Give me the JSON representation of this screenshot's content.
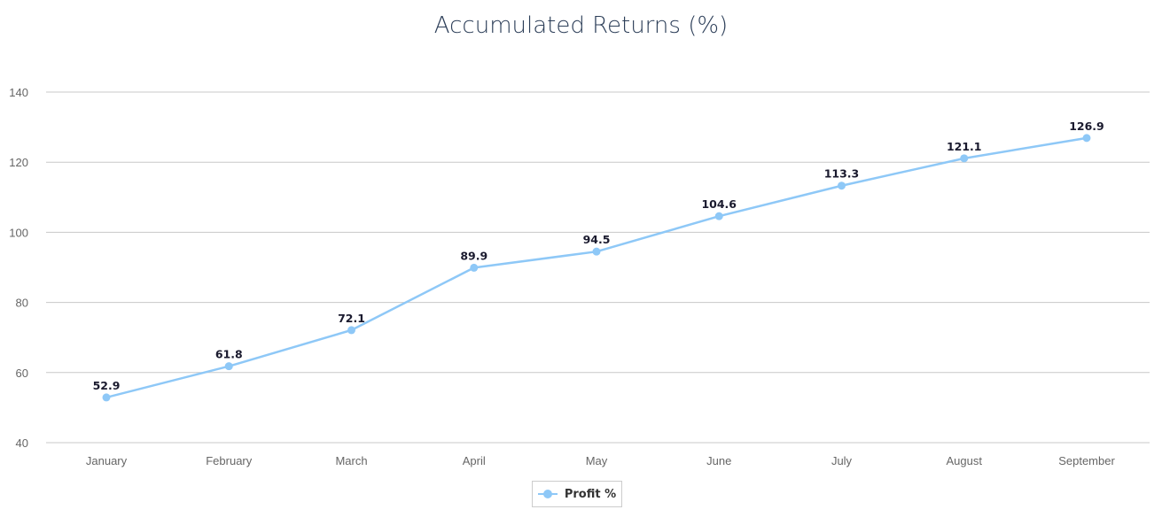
{
  "chart_data": {
    "type": "line",
    "title": "Accumulated Returns (%)",
    "categories": [
      "January",
      "February",
      "March",
      "April",
      "May",
      "June",
      "July",
      "August",
      "September"
    ],
    "series": [
      {
        "name": "Profit %",
        "values": [
          52.9,
          61.8,
          72.1,
          89.9,
          94.5,
          104.6,
          113.3,
          121.1,
          126.9
        ]
      }
    ],
    "y_ticks": [
      40,
      60,
      80,
      100,
      120,
      140
    ],
    "ylim": [
      40,
      140
    ],
    "grid": true,
    "legend_position": "bottom-center",
    "line_color": "#8ec8f7",
    "grid_color": "#c8c8c8"
  }
}
